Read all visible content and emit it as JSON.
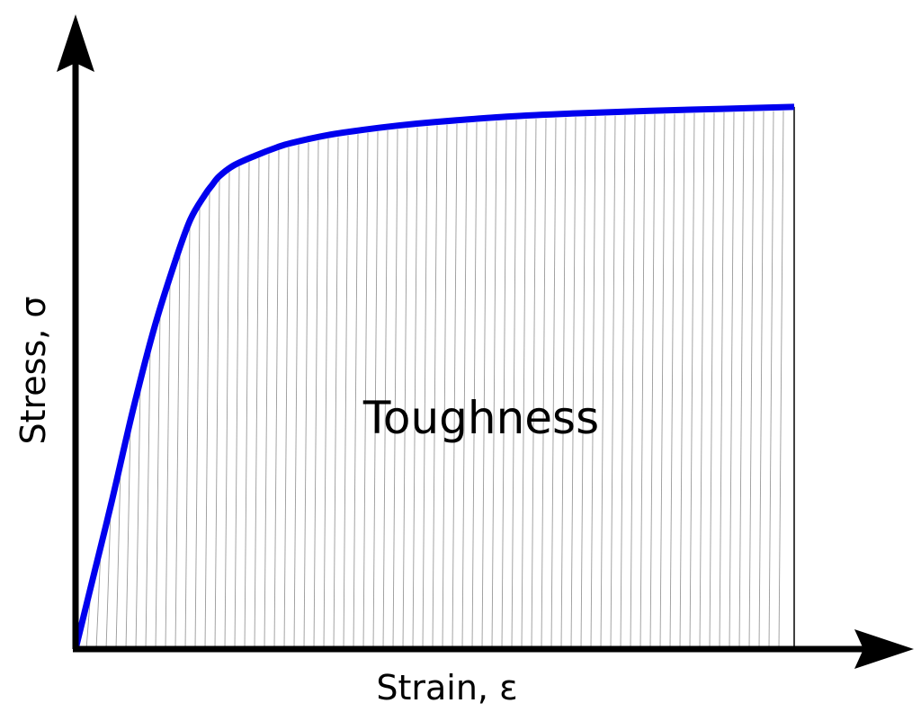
{
  "chart_data": {
    "type": "area",
    "title": "",
    "xlabel": "Strain, ε",
    "ylabel": "Stress, σ",
    "annotation": "Toughness",
    "xlim": [
      0,
      1
    ],
    "ylim": [
      0,
      1.2
    ],
    "grid": false,
    "legend": "none",
    "series": [
      {
        "x": [
          0,
          0.02,
          0.05,
          0.08,
          0.11,
          0.14,
          0.16,
          0.18,
          0.19,
          0.2,
          0.22,
          0.25,
          0.28,
          0.3,
          0.35,
          0.4,
          0.45,
          0.5,
          0.6,
          0.7,
          0.8,
          0.9,
          1.0
        ],
        "y": [
          0,
          0.12,
          0.3,
          0.49,
          0.66,
          0.8,
          0.88,
          0.93,
          0.95,
          0.968,
          0.99,
          1.01,
          1.027,
          1.036,
          1.052,
          1.063,
          1.072,
          1.079,
          1.09,
          1.097,
          1.102,
          1.106,
          1.11
        ]
      }
    ],
    "shaded_region": {
      "from_x": 0,
      "to_x": 1.0,
      "under": "curve"
    }
  },
  "colors": {
    "curve": "#0000ee",
    "axes": "#000000",
    "hatch": "#9a9a9a",
    "background": "#ffffff"
  }
}
